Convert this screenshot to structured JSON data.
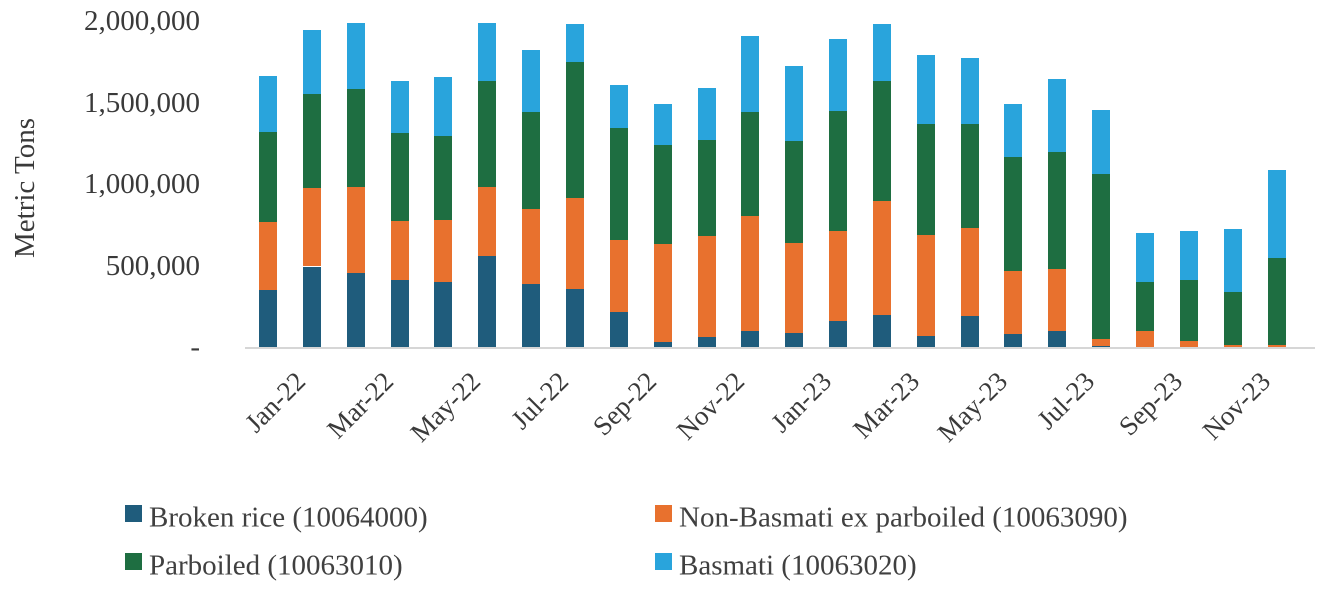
{
  "chart_data": {
    "type": "bar",
    "stacked": true,
    "title": "",
    "xlabel": "",
    "ylabel": "Metric Tons",
    "ylim": [
      0,
      2000000
    ],
    "grid": false,
    "legend_position": "bottom",
    "y_axis": {
      "ticks": [
        {
          "label": "2,000,000",
          "value": 2000000
        },
        {
          "label": "1,500,000",
          "value": 1500000
        },
        {
          "label": "1,000,000",
          "value": 1000000
        },
        {
          "label": "500,000",
          "value": 500000
        },
        {
          "label": "-",
          "value": 0
        }
      ]
    },
    "categories": [
      "Jan-22",
      "Feb-22",
      "Mar-22",
      "Apr-22",
      "May-22",
      "Jun-22",
      "Jul-22",
      "Aug-22",
      "Sep-22",
      "Oct-22",
      "Nov-22",
      "Dec-22",
      "Jan-23",
      "Feb-23",
      "Mar-23",
      "Apr-23",
      "May-23",
      "Jun-23",
      "Jul-23",
      "Aug-23",
      "Sep-23",
      "Oct-23",
      "Nov-23",
      "Dec-23"
    ],
    "x_tick_shown_every": 2,
    "x_tick_labels": [
      "Jan-22",
      "Mar-22",
      "May-22",
      "Jul-22",
      "Sep-22",
      "Nov-22",
      "Jan-23",
      "Mar-23",
      "May-23",
      "Jul-23",
      "Sep-23",
      "Nov-23"
    ],
    "series": [
      {
        "name": "Broken rice (10064000)",
        "color": "#1f5c7c",
        "values": [
          355000,
          500000,
          460000,
          420000,
          405000,
          565000,
          390000,
          360000,
          220000,
          35000,
          70000,
          105000,
          95000,
          165000,
          205000,
          75000,
          195000,
          85000,
          105000,
          10000,
          5000,
          5000,
          5000,
          5000
        ]
      },
      {
        "name": "Non-Basmati ex parboiled (10063090)",
        "color": "#e8712e",
        "values": [
          420000,
          480000,
          525000,
          360000,
          380000,
          420000,
          460000,
          560000,
          440000,
          600000,
          615000,
          705000,
          550000,
          555000,
          695000,
          620000,
          540000,
          390000,
          380000,
          45000,
          100000,
          35000,
          15000,
          15000
        ]
      },
      {
        "name": "Parboiled (10063010)",
        "color": "#1e6e41",
        "values": [
          550000,
          580000,
          605000,
          540000,
          515000,
          655000,
          595000,
          835000,
          690000,
          610000,
          590000,
          640000,
          625000,
          735000,
          740000,
          680000,
          640000,
          695000,
          720000,
          1015000,
          300000,
          380000,
          325000,
          535000
        ]
      },
      {
        "name": "Basmati (10063020)",
        "color": "#29a4dc",
        "values": [
          345000,
          390000,
          405000,
          315000,
          360000,
          355000,
          385000,
          235000,
          265000,
          250000,
          320000,
          465000,
          460000,
          440000,
          350000,
          420000,
          405000,
          330000,
          445000,
          390000,
          300000,
          300000,
          385000,
          535000
        ]
      }
    ],
    "legend_order_row_major": [
      "Broken rice (10064000)",
      "Non-Basmati ex parboiled (10063090)",
      "Parboiled (10063010)",
      "Basmati (10063020)"
    ]
  }
}
